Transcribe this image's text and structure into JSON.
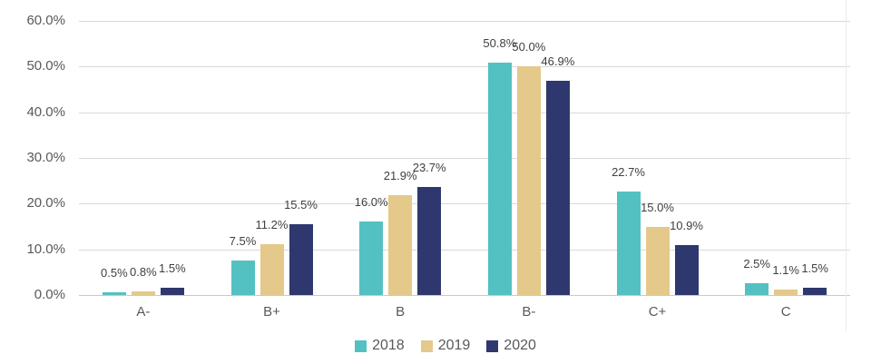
{
  "chart_data": {
    "type": "bar",
    "title": "",
    "xlabel": "",
    "ylabel": "",
    "categories": [
      "A-",
      "B+",
      "B",
      "B-",
      "C+",
      "C"
    ],
    "series": [
      {
        "name": "2018",
        "color": "#53C1C2",
        "values": [
          0.5,
          7.5,
          16.0,
          50.8,
          22.7,
          2.5
        ],
        "labels": [
          "0.5%",
          "7.5%",
          "16.0%",
          "50.8%",
          "22.7%",
          "2.5%"
        ]
      },
      {
        "name": "2019",
        "color": "#E4C98A",
        "values": [
          0.8,
          11.2,
          21.9,
          50.0,
          15.0,
          1.1
        ],
        "labels": [
          "0.8%",
          "11.2%",
          "21.9%",
          "50.0%",
          "15.0%",
          "1.1%"
        ]
      },
      {
        "name": "2020",
        "color": "#2F386E",
        "values": [
          1.5,
          15.5,
          23.7,
          46.9,
          10.9,
          1.5
        ],
        "labels": [
          "1.5%",
          "15.5%",
          "23.7%",
          "46.9%",
          "10.9%",
          "1.5%"
        ]
      }
    ],
    "ylim": [
      0,
      60
    ],
    "yticks": [
      0,
      10,
      20,
      30,
      40,
      50,
      60
    ],
    "ytick_labels": [
      "0.0%",
      "10.0%",
      "20.0%",
      "30.0%",
      "40.0%",
      "50.0%",
      "60.0%"
    ],
    "grid": true,
    "legend_position": "bottom",
    "legend": [
      "2018",
      "2019",
      "2020"
    ]
  },
  "colors": {
    "background": "#FFFFFF",
    "grid_line": "#D9D9D9",
    "baseline": "#C9C9C9",
    "background_vline": "#ECECEC",
    "axis_text": "#595959",
    "data_label_text": "#3F3F3F"
  }
}
